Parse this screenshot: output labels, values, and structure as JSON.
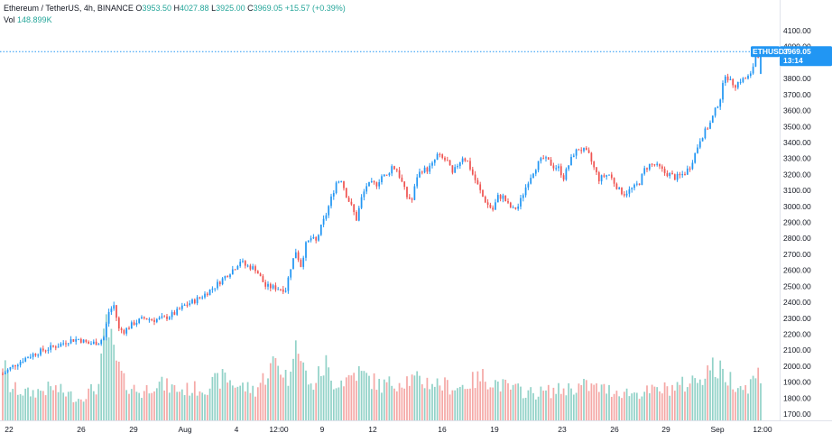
{
  "legend": {
    "symbol": "Ethereum / TetherUS, 4h, BINANCE",
    "open_label": "O",
    "open": "3953.50",
    "high_label": "H",
    "high": "4027.88",
    "low_label": "L",
    "low": "3925.00",
    "close_label": "C",
    "close": "3969.05",
    "change": "+15.57 (+0.39%)",
    "vol_label": "Vol",
    "vol": "148.899K"
  },
  "price_tag": {
    "symbol": "ETHUSDT",
    "price": "3969.05",
    "countdown": "13:14"
  },
  "colors": {
    "up": "#2196f3",
    "down": "#ef5350",
    "vol_up": "#92d2c8",
    "vol_down": "#f5a8a6",
    "tag": "#2196f3",
    "price_line": "#2196f3"
  },
  "chart_data": {
    "type": "candlestick",
    "y_axis_ticks": [
      "4100.00",
      "4000.00",
      "3900.00",
      "3800.00",
      "3700.00",
      "3600.00",
      "3500.00",
      "3400.00",
      "3300.00",
      "3200.00",
      "3100.00",
      "3000.00",
      "2900.00",
      "2800.00",
      "2700.00",
      "2600.00",
      "2500.00",
      "2400.00",
      "2300.00",
      "2200.00",
      "2100.00",
      "2000.00",
      "1900.00",
      "1800.00",
      "1700.00"
    ],
    "ylim": [
      1650,
      4150
    ],
    "x_axis_ticks": [
      "22",
      "26",
      "29",
      "Aug",
      "4",
      "12:00",
      "9",
      "12",
      "16",
      "19",
      "23",
      "26",
      "29",
      "Sep",
      "12:00"
    ],
    "last_price": 3969.05,
    "price_path": [
      [
        0,
        1950
      ],
      [
        4,
        2000
      ],
      [
        10,
        2060
      ],
      [
        16,
        2100
      ],
      [
        22,
        2130
      ],
      [
        26,
        2160
      ],
      [
        30,
        2170
      ],
      [
        34,
        2140
      ],
      [
        38,
        2150
      ],
      [
        40,
        2180
      ],
      [
        42,
        2340
      ],
      [
        44,
        2380
      ],
      [
        46,
        2230
      ],
      [
        48,
        2220
      ],
      [
        52,
        2270
      ],
      [
        56,
        2300
      ],
      [
        60,
        2290
      ],
      [
        64,
        2300
      ],
      [
        68,
        2330
      ],
      [
        72,
        2380
      ],
      [
        76,
        2410
      ],
      [
        80,
        2450
      ],
      [
        84,
        2500
      ],
      [
        88,
        2560
      ],
      [
        92,
        2620
      ],
      [
        94,
        2660
      ],
      [
        96,
        2630
      ],
      [
        100,
        2610
      ],
      [
        104,
        2500
      ],
      [
        108,
        2490
      ],
      [
        112,
        2480
      ],
      [
        114,
        2620
      ],
      [
        116,
        2720
      ],
      [
        118,
        2630
      ],
      [
        120,
        2760
      ],
      [
        122,
        2800
      ],
      [
        124,
        2780
      ],
      [
        126,
        2870
      ],
      [
        128,
        2950
      ],
      [
        130,
        3050
      ],
      [
        132,
        3150
      ],
      [
        134,
        3170
      ],
      [
        136,
        3070
      ],
      [
        138,
        3000
      ],
      [
        140,
        2920
      ],
      [
        142,
        3050
      ],
      [
        144,
        3130
      ],
      [
        146,
        3140
      ],
      [
        148,
        3140
      ],
      [
        150,
        3190
      ],
      [
        152,
        3190
      ],
      [
        154,
        3250
      ],
      [
        156,
        3230
      ],
      [
        158,
        3150
      ],
      [
        160,
        3060
      ],
      [
        162,
        3040
      ],
      [
        164,
        3190
      ],
      [
        166,
        3230
      ],
      [
        168,
        3230
      ],
      [
        170,
        3260
      ],
      [
        172,
        3320
      ],
      [
        174,
        3300
      ],
      [
        176,
        3280
      ],
      [
        178,
        3200
      ],
      [
        180,
        3260
      ],
      [
        182,
        3310
      ],
      [
        184,
        3280
      ],
      [
        186,
        3200
      ],
      [
        188,
        3130
      ],
      [
        190,
        3060
      ],
      [
        192,
        3010
      ],
      [
        194,
        2980
      ],
      [
        196,
        3060
      ],
      [
        198,
        3060
      ],
      [
        200,
        3010
      ],
      [
        202,
        2980
      ],
      [
        204,
        3000
      ],
      [
        206,
        3080
      ],
      [
        208,
        3160
      ],
      [
        210,
        3220
      ],
      [
        212,
        3270
      ],
      [
        214,
        3300
      ],
      [
        216,
        3280
      ],
      [
        218,
        3250
      ],
      [
        220,
        3240
      ],
      [
        222,
        3180
      ],
      [
        224,
        3260
      ],
      [
        226,
        3330
      ],
      [
        228,
        3360
      ],
      [
        230,
        3350
      ],
      [
        232,
        3320
      ],
      [
        234,
        3240
      ],
      [
        236,
        3170
      ],
      [
        238,
        3190
      ],
      [
        240,
        3200
      ],
      [
        242,
        3150
      ],
      [
        244,
        3100
      ],
      [
        246,
        3080
      ],
      [
        248,
        3100
      ],
      [
        250,
        3120
      ],
      [
        252,
        3150
      ],
      [
        254,
        3230
      ],
      [
        256,
        3260
      ],
      [
        258,
        3260
      ],
      [
        260,
        3240
      ],
      [
        262,
        3210
      ],
      [
        264,
        3200
      ],
      [
        266,
        3180
      ],
      [
        268,
        3190
      ],
      [
        270,
        3210
      ],
      [
        272,
        3250
      ],
      [
        274,
        3330
      ],
      [
        276,
        3420
      ],
      [
        278,
        3470
      ],
      [
        280,
        3520
      ],
      [
        282,
        3600
      ],
      [
        284,
        3680
      ],
      [
        286,
        3830
      ],
      [
        288,
        3780
      ],
      [
        290,
        3760
      ],
      [
        292,
        3790
      ],
      [
        294,
        3800
      ],
      [
        296,
        3820
      ],
      [
        298,
        3940
      ],
      [
        300,
        3969
      ]
    ],
    "volume_profile": [
      [
        0,
        0.55
      ],
      [
        3,
        0.3
      ],
      [
        10,
        0.25
      ],
      [
        20,
        0.3
      ],
      [
        30,
        0.2
      ],
      [
        38,
        0.32
      ],
      [
        41,
        0.9
      ],
      [
        44,
        0.6
      ],
      [
        48,
        0.35
      ],
      [
        55,
        0.25
      ],
      [
        60,
        0.35
      ],
      [
        70,
        0.28
      ],
      [
        80,
        0.3
      ],
      [
        88,
        0.4
      ],
      [
        92,
        0.33
      ],
      [
        100,
        0.28
      ],
      [
        108,
        0.55
      ],
      [
        112,
        0.42
      ],
      [
        114,
        0.38
      ],
      [
        116,
        0.97
      ],
      [
        118,
        0.55
      ],
      [
        122,
        0.3
      ],
      [
        126,
        0.45
      ],
      [
        128,
        0.52
      ],
      [
        130,
        0.35
      ],
      [
        136,
        0.38
      ],
      [
        140,
        0.45
      ],
      [
        150,
        0.32
      ],
      [
        160,
        0.38
      ],
      [
        170,
        0.35
      ],
      [
        180,
        0.3
      ],
      [
        190,
        0.4
      ],
      [
        200,
        0.3
      ],
      [
        210,
        0.25
      ],
      [
        220,
        0.28
      ],
      [
        230,
        0.32
      ],
      [
        240,
        0.28
      ],
      [
        250,
        0.25
      ],
      [
        260,
        0.28
      ],
      [
        270,
        0.33
      ],
      [
        276,
        0.4
      ],
      [
        280,
        0.5
      ],
      [
        284,
        0.45
      ],
      [
        290,
        0.35
      ],
      [
        294,
        0.3
      ],
      [
        300,
        0.45
      ]
    ]
  }
}
